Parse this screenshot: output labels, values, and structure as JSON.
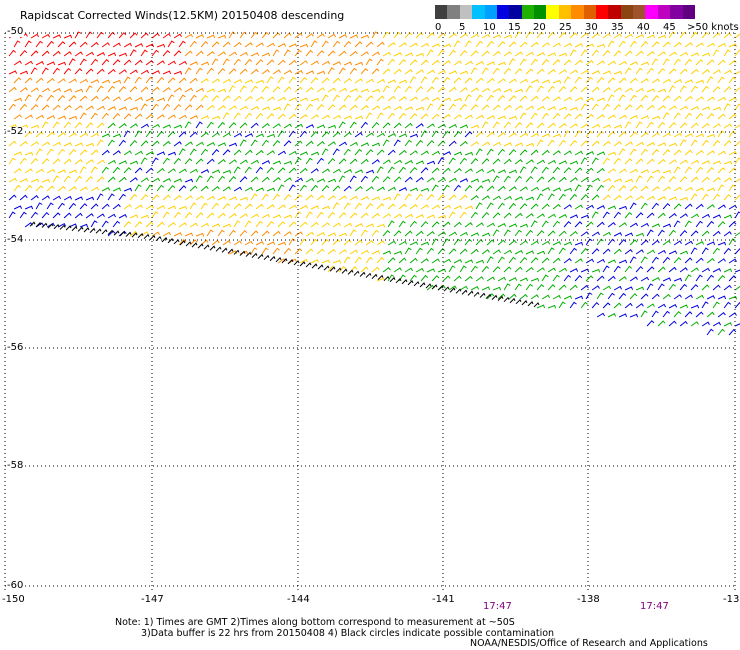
{
  "title": "Rapidscat Corrected Winds(12.5KM) 20150408 descending",
  "legend": {
    "colors": [
      "#404040",
      "#808080",
      "#c0c0c0",
      "#00c0ff",
      "#00a0ff",
      "#0000e0",
      "#0000a0",
      "#20b000",
      "#009000",
      "#ffff00",
      "#ffc000",
      "#ff8c00",
      "#e06000",
      "#ff0000",
      "#c00000",
      "#8b4513",
      "#a0522d",
      "#ff00ff",
      "#c000c0",
      "#8000a0",
      "#600080"
    ],
    "tick_labels": [
      "0",
      "5",
      "10",
      "15",
      "20",
      "25",
      "30",
      "35",
      "40",
      "45",
      ">50 knots"
    ]
  },
  "map": {
    "lat_labels": [
      "-50",
      "-52",
      "-54",
      "-56",
      "-58",
      "-60"
    ],
    "lon_labels": [
      "-150",
      "-147",
      "-144",
      "-141",
      "-138",
      "-13"
    ],
    "times": [
      "17:47",
      "17:47"
    ]
  },
  "notes": {
    "line1": "Note: 1) Times are GMT 2)Times along bottom correspond to measurement at ~50S",
    "line2": "3)Data buffer is 22 hrs from 20150408 4) Black circles indicate possible contamination"
  },
  "credit": "NOAA/NESDIS/Office of Research and Applications",
  "wind_colors": {
    "red": "#ff0000",
    "orange": "#ff8c00",
    "yellow": "#ffd000",
    "green": "#00b000",
    "blue": "#0000e0",
    "cyan": "#00a0ff",
    "black": "#000000"
  }
}
